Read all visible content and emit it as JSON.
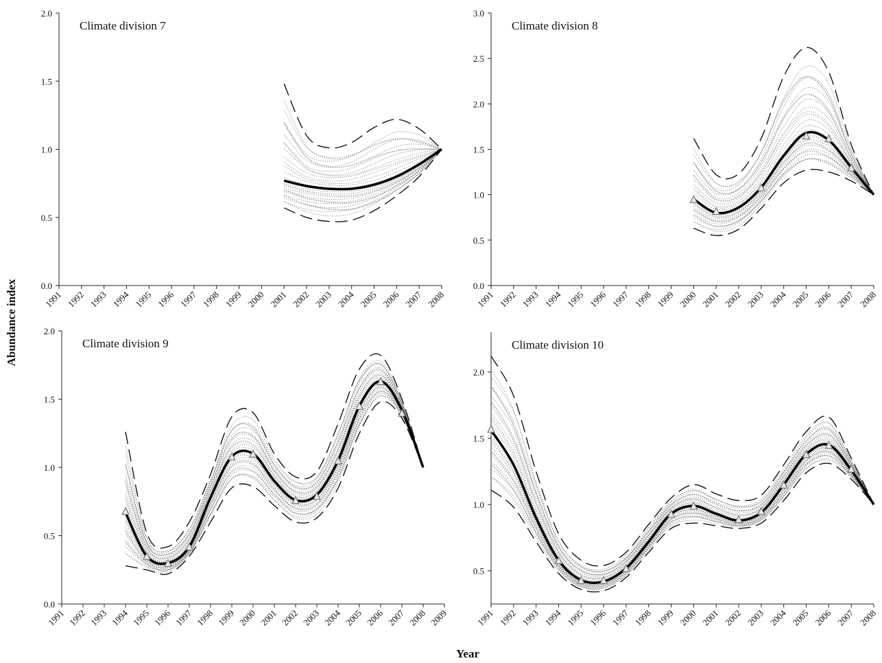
{
  "figure": {
    "ylabel": "Abundance index",
    "xlabel": "Year"
  },
  "chart_data": [
    {
      "type": "line",
      "title": "Climate division 7",
      "x_ticks": [
        "1991",
        "1992",
        "1993",
        "1994",
        "1995",
        "1996",
        "1997",
        "1998",
        "1999",
        "2000",
        "2001",
        "2002",
        "2003",
        "2004",
        "2005",
        "2006",
        "2007",
        "2008"
      ],
      "ylim": [
        0,
        2.0
      ],
      "y_ticks": [
        "0.0",
        "0.5",
        "1.0",
        "1.5",
        "2.0"
      ],
      "series": [
        {
          "role": "estimate",
          "x": [
            2001,
            2002,
            2003,
            2004,
            2005,
            2006,
            2007,
            2008
          ],
          "y": [
            0.77,
            0.73,
            0.71,
            0.71,
            0.74,
            0.8,
            0.89,
            1.0
          ]
        },
        {
          "role": "upper",
          "x": [
            2001,
            2002,
            2003,
            2004,
            2005,
            2006,
            2007,
            2008
          ],
          "y": [
            1.48,
            1.1,
            1.01,
            1.05,
            1.16,
            1.22,
            1.15,
            1.0
          ]
        },
        {
          "role": "lower",
          "x": [
            2001,
            2002,
            2003,
            2004,
            2005,
            2006,
            2007,
            2008
          ],
          "y": [
            0.57,
            0.5,
            0.47,
            0.48,
            0.55,
            0.66,
            0.8,
            1.0
          ]
        }
      ],
      "markers": []
    },
    {
      "type": "line",
      "title": "Climate division 8",
      "x_ticks": [
        "1991",
        "1992",
        "1993",
        "1994",
        "1995",
        "1996",
        "1997",
        "1998",
        "1999",
        "2000",
        "2001",
        "2002",
        "2003",
        "2004",
        "2005",
        "2006",
        "2007",
        "2008"
      ],
      "ylim": [
        0,
        3.0
      ],
      "y_ticks": [
        "0.0",
        "0.5",
        "1.0",
        "1.5",
        "2.0",
        "2.5",
        "3.0"
      ],
      "series": [
        {
          "role": "estimate",
          "x": [
            2000,
            2001,
            2002,
            2003,
            2004,
            2005,
            2006,
            2007,
            2008
          ],
          "y": [
            0.95,
            0.8,
            0.86,
            1.08,
            1.43,
            1.68,
            1.6,
            1.3,
            1.0
          ]
        },
        {
          "role": "upper",
          "x": [
            2000,
            2001,
            2002,
            2003,
            2004,
            2005,
            2006,
            2007,
            2008
          ],
          "y": [
            1.62,
            1.22,
            1.23,
            1.62,
            2.3,
            2.62,
            2.35,
            1.55,
            1.0
          ]
        },
        {
          "role": "lower",
          "x": [
            2000,
            2001,
            2002,
            2003,
            2004,
            2005,
            2006,
            2007,
            2008
          ],
          "y": [
            0.63,
            0.55,
            0.62,
            0.85,
            1.13,
            1.27,
            1.25,
            1.15,
            1.0
          ]
        }
      ],
      "markers": [
        {
          "x": 2000,
          "y": 0.95
        },
        {
          "x": 2001,
          "y": 0.82
        },
        {
          "x": 2003,
          "y": 1.08
        },
        {
          "x": 2005,
          "y": 1.65
        },
        {
          "x": 2006,
          "y": 1.62
        },
        {
          "x": 2007,
          "y": 1.3
        }
      ]
    },
    {
      "type": "line",
      "title": "Climate division 9",
      "x_ticks": [
        "1991",
        "1992",
        "1993",
        "1994",
        "1995",
        "1996",
        "1997",
        "1998",
        "1999",
        "2000",
        "2001",
        "2002",
        "2003",
        "2004",
        "2005",
        "2006",
        "2007",
        "2008",
        "2009"
      ],
      "ylim": [
        0,
        2.0
      ],
      "y_ticks": [
        "0.0",
        "0.5",
        "1.0",
        "1.5",
        "2.0"
      ],
      "series": [
        {
          "role": "estimate",
          "x": [
            1994,
            1995,
            1996,
            1997,
            1998,
            1999,
            2000,
            2001,
            2002,
            2003,
            2004,
            2005,
            2006,
            2007,
            2008
          ],
          "y": [
            0.67,
            0.35,
            0.3,
            0.42,
            0.78,
            1.08,
            1.1,
            0.9,
            0.76,
            0.8,
            1.05,
            1.45,
            1.63,
            1.42,
            1.0
          ]
        },
        {
          "role": "upper",
          "x": [
            1994,
            1995,
            1996,
            1997,
            1998,
            1999,
            2000,
            2001,
            2002,
            2003,
            2004,
            2005,
            2006,
            2007,
            2008
          ],
          "y": [
            1.26,
            0.52,
            0.42,
            0.6,
            0.95,
            1.37,
            1.4,
            1.1,
            0.93,
            0.97,
            1.32,
            1.72,
            1.82,
            1.5,
            1.0
          ]
        },
        {
          "role": "lower",
          "x": [
            1994,
            1995,
            1996,
            1997,
            1998,
            1999,
            2000,
            2001,
            2002,
            2003,
            2004,
            2005,
            2006,
            2007,
            2008
          ],
          "y": [
            0.28,
            0.25,
            0.22,
            0.35,
            0.6,
            0.85,
            0.86,
            0.72,
            0.6,
            0.63,
            0.85,
            1.25,
            1.48,
            1.36,
            1.0
          ]
        }
      ],
      "markers": [
        {
          "x": 1994,
          "y": 0.68
        },
        {
          "x": 1995,
          "y": 0.35
        },
        {
          "x": 1996,
          "y": 0.3
        },
        {
          "x": 1997,
          "y": 0.42
        },
        {
          "x": 1999,
          "y": 1.08
        },
        {
          "x": 2000,
          "y": 1.1
        },
        {
          "x": 2002,
          "y": 0.76
        },
        {
          "x": 2003,
          "y": 0.79
        },
        {
          "x": 2004,
          "y": 1.05
        },
        {
          "x": 2005,
          "y": 1.45
        },
        {
          "x": 2006,
          "y": 1.63
        },
        {
          "x": 2007,
          "y": 1.4
        }
      ]
    },
    {
      "type": "line",
      "title": "Climate division 10",
      "x_ticks": [
        "1991",
        "1992",
        "1993",
        "1994",
        "1995",
        "1996",
        "1997",
        "1998",
        "1999",
        "2000",
        "2001",
        "2002",
        "2003",
        "2004",
        "2005",
        "2006",
        "2007",
        "2008"
      ],
      "ylim": [
        0.25,
        2.3
      ],
      "y_ticks": [
        "0.5",
        "1.0",
        "1.5",
        "2.0"
      ],
      "series": [
        {
          "role": "estimate",
          "x": [
            1991,
            1992,
            1993,
            1994,
            1995,
            1996,
            1997,
            1998,
            1999,
            2000,
            2001,
            2002,
            2003,
            2004,
            2005,
            2006,
            2007,
            2008
          ],
          "y": [
            1.56,
            1.3,
            0.9,
            0.58,
            0.43,
            0.42,
            0.52,
            0.72,
            0.93,
            0.99,
            0.93,
            0.88,
            0.94,
            1.15,
            1.38,
            1.45,
            1.26,
            1.0
          ]
        },
        {
          "role": "upper",
          "x": [
            1991,
            1992,
            1993,
            1994,
            1995,
            1996,
            1997,
            1998,
            1999,
            2000,
            2001,
            2002,
            2003,
            2004,
            2005,
            2006,
            2007,
            2008
          ],
          "y": [
            2.12,
            1.82,
            1.25,
            0.78,
            0.58,
            0.54,
            0.64,
            0.85,
            1.05,
            1.15,
            1.08,
            1.03,
            1.07,
            1.3,
            1.55,
            1.66,
            1.35,
            1.0
          ]
        },
        {
          "role": "lower",
          "x": [
            1991,
            1992,
            1993,
            1994,
            1995,
            1996,
            1997,
            1998,
            1999,
            2000,
            2001,
            2002,
            2003,
            2004,
            2005,
            2006,
            2007,
            2008
          ],
          "y": [
            1.11,
            0.98,
            0.72,
            0.48,
            0.36,
            0.35,
            0.45,
            0.64,
            0.82,
            0.86,
            0.84,
            0.82,
            0.86,
            1.03,
            1.24,
            1.31,
            1.19,
            1.0
          ]
        }
      ],
      "markers": [
        {
          "x": 1991,
          "y": 1.57
        },
        {
          "x": 1994,
          "y": 0.58
        },
        {
          "x": 1995,
          "y": 0.43
        },
        {
          "x": 1996,
          "y": 0.43
        },
        {
          "x": 1997,
          "y": 0.52
        },
        {
          "x": 1999,
          "y": 0.93
        },
        {
          "x": 2000,
          "y": 0.99
        },
        {
          "x": 2002,
          "y": 0.89
        },
        {
          "x": 2003,
          "y": 0.95
        },
        {
          "x": 2004,
          "y": 1.15
        },
        {
          "x": 2005,
          "y": 1.38
        },
        {
          "x": 2006,
          "y": 1.45
        },
        {
          "x": 2007,
          "y": 1.27
        }
      ]
    }
  ]
}
